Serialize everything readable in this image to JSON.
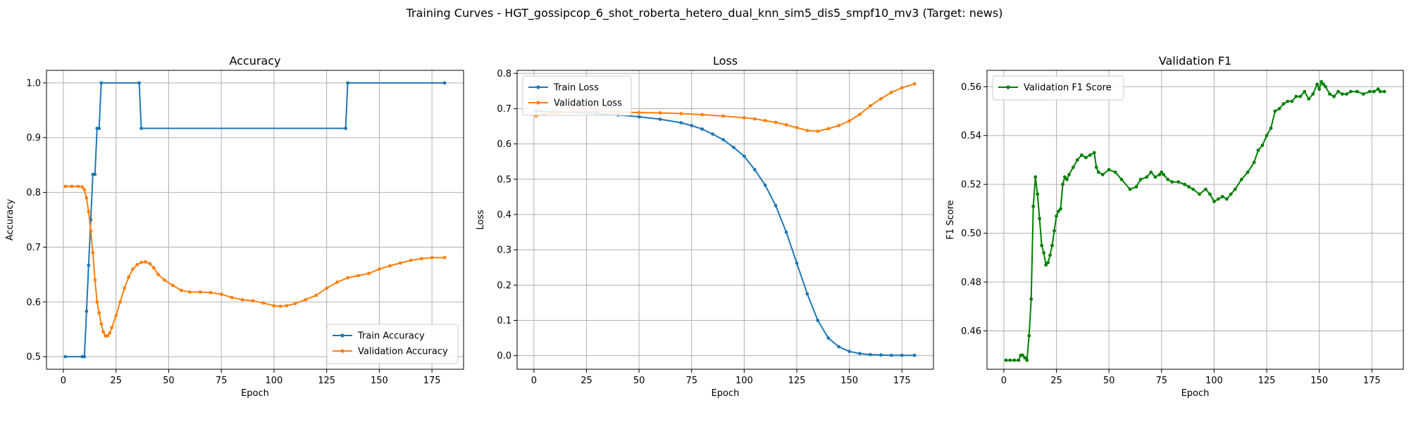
{
  "figure": {
    "suptitle": "Training Curves - HGT_gossipcop_6_shot_roberta_hetero_dual_knn_sim5_dis5_smpf10_mv3 (Target: news)"
  },
  "chart_data": [
    {
      "type": "line",
      "title": "Accuracy",
      "xlabel": "Epoch",
      "ylabel": "Accuracy",
      "xlim": [
        -8,
        190
      ],
      "ylim": [
        0.477,
        1.023
      ],
      "xticks": [
        0,
        25,
        50,
        75,
        100,
        125,
        150,
        175
      ],
      "yticks": [
        0.5,
        0.6,
        0.7,
        0.8,
        0.9,
        1.0
      ],
      "tick_decimals": 1,
      "grid": true,
      "legend": "lower-right",
      "series": [
        {
          "name": "Train Accuracy",
          "color": "#1f77b4",
          "x": [
            1,
            9,
            10,
            11,
            12,
            13,
            14,
            15,
            16,
            17,
            18,
            36,
            37,
            134,
            135,
            181
          ],
          "y": [
            0.5,
            0.5,
            0.5,
            0.583,
            0.667,
            0.75,
            0.833,
            0.833,
            0.917,
            0.917,
            1.0,
            1.0,
            0.917,
            0.917,
            1.0,
            1.0
          ]
        },
        {
          "name": "Validation Accuracy",
          "color": "#ff7f0e",
          "x": [
            1,
            4,
            7,
            9,
            10,
            11,
            12,
            13,
            14,
            15,
            16,
            17,
            18,
            19,
            20,
            21,
            22,
            23,
            25,
            27,
            29,
            31,
            33,
            35,
            37,
            39,
            41,
            43,
            45,
            48,
            52,
            56,
            60,
            65,
            70,
            75,
            80,
            85,
            90,
            95,
            100,
            103,
            106,
            110,
            115,
            120,
            125,
            130,
            135,
            140,
            145,
            150,
            155,
            160,
            165,
            170,
            175,
            181
          ],
          "y": [
            0.811,
            0.811,
            0.811,
            0.81,
            0.805,
            0.79,
            0.765,
            0.73,
            0.69,
            0.64,
            0.6,
            0.58,
            0.56,
            0.545,
            0.538,
            0.538,
            0.543,
            0.553,
            0.575,
            0.6,
            0.625,
            0.645,
            0.66,
            0.668,
            0.672,
            0.673,
            0.67,
            0.662,
            0.65,
            0.64,
            0.63,
            0.621,
            0.618,
            0.618,
            0.617,
            0.614,
            0.608,
            0.604,
            0.602,
            0.598,
            0.593,
            0.592,
            0.593,
            0.597,
            0.604,
            0.612,
            0.625,
            0.636,
            0.644,
            0.648,
            0.652,
            0.66,
            0.666,
            0.671,
            0.676,
            0.679,
            0.681,
            0.681
          ]
        }
      ]
    },
    {
      "type": "line",
      "title": "Loss",
      "xlabel": "Epoch",
      "ylabel": "Loss",
      "xlim": [
        -8,
        190
      ],
      "ylim": [
        -0.0385,
        0.8085
      ],
      "xticks": [
        0,
        25,
        50,
        75,
        100,
        125,
        150,
        175
      ],
      "yticks": [
        0.0,
        0.1,
        0.2,
        0.3,
        0.4,
        0.5,
        0.6,
        0.7,
        0.8
      ],
      "tick_decimals": 1,
      "grid": true,
      "legend": "upper-left",
      "series": [
        {
          "name": "Train Loss",
          "color": "#1f77b4",
          "x": [
            1,
            10,
            20,
            30,
            40,
            50,
            60,
            70,
            75,
            80,
            85,
            90,
            95,
            100,
            105,
            110,
            115,
            120,
            125,
            130,
            135,
            140,
            145,
            150,
            155,
            160,
            165,
            170,
            175,
            181
          ],
          "y": [
            0.693,
            0.691,
            0.689,
            0.686,
            0.682,
            0.677,
            0.67,
            0.66,
            0.652,
            0.642,
            0.628,
            0.612,
            0.59,
            0.565,
            0.527,
            0.483,
            0.425,
            0.35,
            0.262,
            0.175,
            0.1,
            0.05,
            0.025,
            0.012,
            0.006,
            0.003,
            0.002,
            0.001,
            0.001,
            0.001
          ]
        },
        {
          "name": "Validation Loss",
          "color": "#ff7f0e",
          "x": [
            1,
            5,
            10,
            20,
            30,
            40,
            50,
            60,
            70,
            80,
            90,
            100,
            105,
            110,
            115,
            120,
            125,
            130,
            135,
            140,
            145,
            150,
            155,
            160,
            165,
            170,
            175,
            181
          ],
          "y": [
            0.68,
            0.684,
            0.688,
            0.692,
            0.692,
            0.69,
            0.689,
            0.688,
            0.686,
            0.683,
            0.679,
            0.674,
            0.671,
            0.666,
            0.661,
            0.654,
            0.646,
            0.638,
            0.636,
            0.643,
            0.652,
            0.665,
            0.684,
            0.708,
            0.728,
            0.746,
            0.759,
            0.77
          ]
        }
      ]
    },
    {
      "type": "line",
      "title": "Validation F1",
      "xlabel": "Epoch",
      "ylabel": "F1 Score",
      "xlim": [
        -8,
        190
      ],
      "ylim": [
        0.4443,
        0.5667
      ],
      "xticks": [
        0,
        25,
        50,
        75,
        100,
        125,
        150,
        175
      ],
      "yticks": [
        0.46,
        0.48,
        0.5,
        0.52,
        0.54,
        0.56
      ],
      "tick_decimals": 2,
      "grid": true,
      "legend": "upper-left",
      "series": [
        {
          "name": "Validation F1 Score",
          "color": "#008000",
          "x": [
            1,
            3,
            5,
            7,
            8,
            9,
            10,
            11,
            12,
            13,
            14,
            15,
            16,
            17,
            18,
            19,
            20,
            21,
            22,
            23,
            24,
            25,
            26,
            27,
            28,
            29,
            30,
            31,
            33,
            35,
            37,
            39,
            41,
            43,
            44,
            45,
            47,
            50,
            53,
            56,
            60,
            63,
            65,
            68,
            70,
            72,
            74,
            75,
            76,
            78,
            80,
            83,
            86,
            88,
            90,
            93,
            96,
            98,
            100,
            102,
            104,
            106,
            108,
            110,
            113,
            116,
            119,
            121,
            123,
            125,
            127,
            129,
            131,
            133,
            135,
            137,
            139,
            141,
            143,
            145,
            147,
            149,
            150,
            151,
            152,
            153,
            155,
            157,
            159,
            161,
            163,
            165,
            168,
            171,
            174,
            176,
            178,
            179,
            181
          ],
          "y": [
            0.448,
            0.448,
            0.448,
            0.448,
            0.45,
            0.45,
            0.449,
            0.448,
            0.458,
            0.473,
            0.511,
            0.523,
            0.516,
            0.506,
            0.495,
            0.492,
            0.487,
            0.488,
            0.491,
            0.495,
            0.501,
            0.507,
            0.509,
            0.51,
            0.52,
            0.523,
            0.522,
            0.524,
            0.527,
            0.53,
            0.532,
            0.531,
            0.532,
            0.533,
            0.527,
            0.525,
            0.524,
            0.526,
            0.525,
            0.522,
            0.518,
            0.519,
            0.522,
            0.523,
            0.525,
            0.523,
            0.524,
            0.525,
            0.524,
            0.522,
            0.521,
            0.521,
            0.52,
            0.519,
            0.518,
            0.516,
            0.518,
            0.516,
            0.513,
            0.514,
            0.515,
            0.514,
            0.516,
            0.518,
            0.522,
            0.525,
            0.529,
            0.534,
            0.536,
            0.54,
            0.543,
            0.55,
            0.551,
            0.553,
            0.554,
            0.554,
            0.556,
            0.556,
            0.558,
            0.555,
            0.557,
            0.561,
            0.559,
            0.562,
            0.561,
            0.56,
            0.557,
            0.556,
            0.558,
            0.557,
            0.557,
            0.558,
            0.558,
            0.557,
            0.558,
            0.558,
            0.559,
            0.558,
            0.558
          ]
        }
      ]
    }
  ]
}
